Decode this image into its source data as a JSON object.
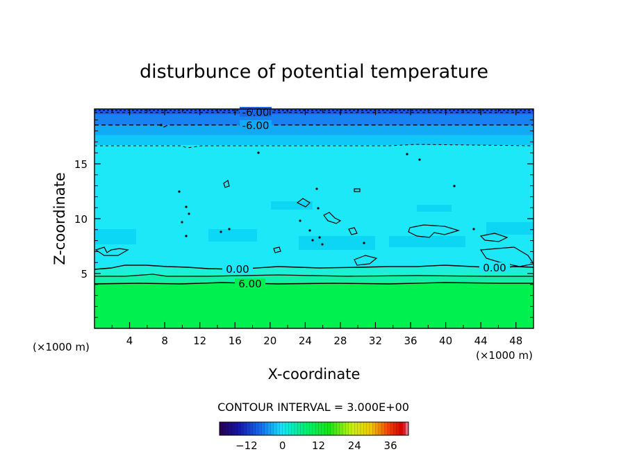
{
  "chart_data": {
    "type": "heatmap",
    "title": "disturbunce of potential temperature",
    "xlabel": "X-coordinate",
    "ylabel": "Z-coordinate",
    "x_unit": "(×1000 m)",
    "z_unit": "(×1000 m)",
    "xlim": [
      0,
      50
    ],
    "ylim": [
      0,
      20
    ],
    "x_ticks": [
      "4",
      "8",
      "12",
      "16",
      "20",
      "24",
      "28",
      "32",
      "36",
      "40",
      "44",
      "48"
    ],
    "y_ticks": [
      "5",
      "10",
      "15"
    ],
    "contour_interval_text": "CONTOUR INTERVAL = 3.000E+00",
    "contour_labels": [
      "-6.00",
      "-6.00",
      "0.00",
      "0.00",
      "6.00"
    ],
    "bands": [
      {
        "z_from": 0.0,
        "z_to": 4.2,
        "value": 9,
        "color": "#00f050"
      },
      {
        "z_from": 4.2,
        "z_to": 4.9,
        "value": 6,
        "color": "#10f0a8"
      },
      {
        "z_from": 4.9,
        "z_to": 5.6,
        "value": 3,
        "color": "#1ef0d8"
      },
      {
        "z_from": 5.6,
        "z_to": 16.7,
        "value": 0,
        "color": "#1ce8f8"
      },
      {
        "z_from": 16.7,
        "z_to": 17.6,
        "value": -3,
        "color": "#10c8f8"
      },
      {
        "z_from": 17.6,
        "z_to": 18.5,
        "value": -6,
        "color": "#10aaf6"
      },
      {
        "z_from": 18.5,
        "z_to": 19.5,
        "value": -9,
        "color": "#1a82f0"
      },
      {
        "z_from": 19.5,
        "z_to": 20.0,
        "value": -12,
        "color": "#1a5ae8"
      }
    ],
    "colorbar": {
      "min": -21,
      "max": 42,
      "tick_values": [
        -12,
        0,
        12,
        24,
        36
      ],
      "tick_labels": [
        "−12",
        "0",
        "12",
        "24",
        "36"
      ]
    }
  }
}
